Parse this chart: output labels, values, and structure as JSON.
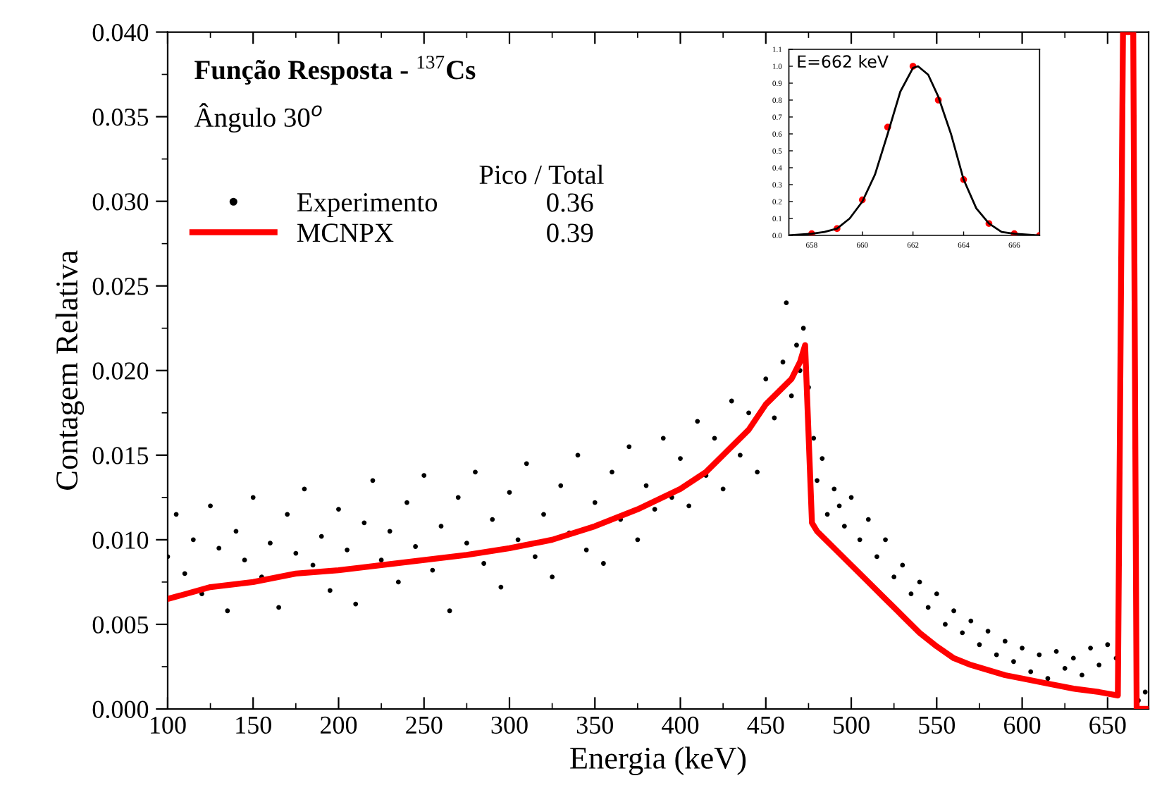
{
  "chart_data": [
    {
      "type": "scatter",
      "title": "Função Resposta - $^{137}$Cs",
      "subtitle": "Ângulo 30$^{o}$",
      "xlabel": "Energia (keV)",
      "ylabel": "Contagem Relativa",
      "legend_title": "Pico / Total",
      "xlim": [
        100,
        674
      ],
      "xticks": [
        100,
        150,
        200,
        250,
        300,
        350,
        400,
        450,
        500,
        550,
        600,
        650
      ],
      "ylim": [
        0,
        0.04
      ],
      "yticks": [
        {
          "value": 0,
          "label": "0.000"
        },
        {
          "value": 0.005,
          "label": "0.005"
        },
        {
          "value": 0.01,
          "label": "0.010"
        },
        {
          "value": 0.015,
          "label": "0.015"
        },
        {
          "value": 0.02,
          "label": "0.020"
        },
        {
          "value": 0.025,
          "label": "0.025"
        },
        {
          "value": 0.03,
          "label": "0.030"
        },
        {
          "value": 0.035,
          "label": "0.035"
        },
        {
          "value": 0.04,
          "label": "0.040"
        }
      ],
      "grid": false,
      "legend": "top left",
      "annotations": [
        "0.36",
        "0.39"
      ],
      "series": [
        {
          "name": "Experimento",
          "color": "#000000",
          "marker": "circle",
          "x": [
            100,
            105,
            110,
            115,
            120,
            125,
            130,
            135,
            140,
            145,
            150,
            155,
            160,
            165,
            170,
            175,
            180,
            185,
            190,
            195,
            200,
            205,
            210,
            215,
            220,
            225,
            230,
            235,
            240,
            245,
            250,
            255,
            260,
            265,
            270,
            275,
            280,
            285,
            290,
            295,
            300,
            305,
            310,
            315,
            320,
            325,
            330,
            335,
            340,
            345,
            350,
            355,
            360,
            365,
            370,
            375,
            380,
            385,
            390,
            395,
            400,
            405,
            410,
            415,
            420,
            425,
            430,
            435,
            440,
            445,
            450,
            455,
            460,
            462,
            465,
            468,
            470,
            472,
            475,
            478,
            480,
            483,
            486,
            490,
            493,
            496,
            500,
            505,
            510,
            515,
            520,
            525,
            530,
            535,
            540,
            545,
            550,
            555,
            560,
            565,
            570,
            575,
            580,
            585,
            590,
            595,
            600,
            605,
            610,
            615,
            620,
            625,
            630,
            635,
            640,
            645,
            650,
            655,
            668,
            672
          ],
          "values": [
            0.009,
            0.0115,
            0.008,
            0.01,
            0.0068,
            0.012,
            0.0095,
            0.0058,
            0.0105,
            0.0088,
            0.0125,
            0.0078,
            0.0098,
            0.006,
            0.0115,
            0.0092,
            0.013,
            0.0085,
            0.0102,
            0.007,
            0.0118,
            0.0094,
            0.0062,
            0.011,
            0.0135,
            0.0088,
            0.0105,
            0.0075,
            0.0122,
            0.0096,
            0.0138,
            0.0082,
            0.0108,
            0.0058,
            0.0125,
            0.0098,
            0.014,
            0.0086,
            0.0112,
            0.0072,
            0.0128,
            0.01,
            0.0145,
            0.009,
            0.0115,
            0.0078,
            0.0132,
            0.0104,
            0.015,
            0.0094,
            0.0122,
            0.0086,
            0.014,
            0.0112,
            0.0155,
            0.01,
            0.0132,
            0.0118,
            0.016,
            0.0125,
            0.0148,
            0.012,
            0.017,
            0.0138,
            0.016,
            0.013,
            0.0182,
            0.015,
            0.0175,
            0.014,
            0.0195,
            0.0172,
            0.0205,
            0.024,
            0.0185,
            0.0215,
            0.02,
            0.0225,
            0.019,
            0.016,
            0.0135,
            0.0148,
            0.0115,
            0.013,
            0.012,
            0.0108,
            0.0125,
            0.01,
            0.0112,
            0.009,
            0.01,
            0.0078,
            0.0085,
            0.0068,
            0.0075,
            0.006,
            0.0068,
            0.005,
            0.0058,
            0.0045,
            0.0052,
            0.0038,
            0.0046,
            0.0032,
            0.004,
            0.0028,
            0.0036,
            0.0022,
            0.0032,
            0.0018,
            0.0034,
            0.0024,
            0.003,
            0.002,
            0.0036,
            0.0026,
            0.0038,
            0.003,
            0.0005,
            0.001
          ]
        },
        {
          "name": "MCNPX",
          "type": "line",
          "color": "#ff0000",
          "line_style": "solid",
          "x": [
            100,
            125,
            150,
            175,
            200,
            225,
            250,
            275,
            300,
            325,
            350,
            375,
            400,
            415,
            430,
            440,
            450,
            460,
            465,
            470,
            473,
            477,
            480,
            490,
            500,
            510,
            520,
            530,
            540,
            550,
            560,
            570,
            580,
            590,
            600,
            615,
            630,
            645,
            656,
            659,
            665,
            667,
            674
          ],
          "values": [
            0.0065,
            0.0072,
            0.0075,
            0.008,
            0.0082,
            0.0085,
            0.0088,
            0.0091,
            0.0095,
            0.01,
            0.0108,
            0.0118,
            0.013,
            0.014,
            0.0155,
            0.0165,
            0.018,
            0.019,
            0.0195,
            0.0205,
            0.0215,
            0.011,
            0.0105,
            0.0095,
            0.0085,
            0.0075,
            0.0065,
            0.0055,
            0.0045,
            0.0037,
            0.003,
            0.0026,
            0.0023,
            0.002,
            0.0018,
            0.0015,
            0.0012,
            0.001,
            0.0008,
            0.04,
            0.04,
            0,
            0
          ]
        }
      ]
    },
    {
      "type": "line",
      "title": "E=662 keV",
      "xlim": [
        657.1,
        667
      ],
      "xticks": [
        658,
        660,
        662,
        664,
        666
      ],
      "ylim": [
        0,
        1.1
      ],
      "yticks": [
        {
          "value": 0,
          "label": "0.0"
        },
        {
          "value": 0.1,
          "label": "0.1"
        },
        {
          "value": 0.2,
          "label": "0.2"
        },
        {
          "value": 0.3,
          "label": "0.3"
        },
        {
          "value": 0.4,
          "label": "0.4"
        },
        {
          "value": 0.5,
          "label": "0.5"
        },
        {
          "value": 0.6,
          "label": "0.6"
        },
        {
          "value": 0.7,
          "label": "0.7"
        },
        {
          "value": 0.8,
          "label": "0.8"
        },
        {
          "value": 0.9,
          "label": "0.9"
        },
        {
          "value": 1.0,
          "label": "1.0"
        },
        {
          "value": 1.1,
          "label": "1.1"
        }
      ],
      "grid": false,
      "series": [
        {
          "color": "#000000",
          "x": [
            657.1,
            658,
            658.5,
            659,
            659.5,
            660,
            660.5,
            661,
            661.5,
            662,
            662.2,
            662.6,
            663,
            663.5,
            664,
            664.5,
            665,
            665.5,
            666,
            667
          ],
          "values": [
            0,
            0.01,
            0.02,
            0.04,
            0.1,
            0.2,
            0.36,
            0.6,
            0.85,
            0.99,
            1.0,
            0.95,
            0.82,
            0.6,
            0.33,
            0.16,
            0.07,
            0.02,
            0.01,
            0
          ]
        },
        {
          "type": "scatter",
          "color": "#ff0000",
          "marker": "circle",
          "x": [
            658,
            659,
            660,
            661,
            662,
            663,
            664,
            665,
            666,
            667
          ],
          "values": [
            0.01,
            0.04,
            0.21,
            0.64,
            1.0,
            0.8,
            0.33,
            0.07,
            0.01,
            0.0
          ]
        }
      ]
    }
  ]
}
